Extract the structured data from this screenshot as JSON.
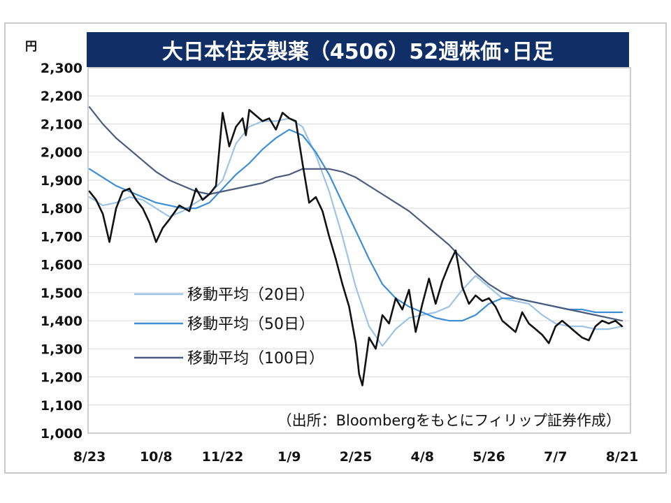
{
  "chart_data": {
    "type": "line",
    "title": "大日本住友製薬（4506）52週株価･日足",
    "unit": "円",
    "ylim": [
      1000,
      2300
    ],
    "y_ticks": [
      1000,
      1100,
      1200,
      1300,
      1400,
      1500,
      1600,
      1700,
      1800,
      1900,
      2000,
      2100,
      2200,
      2300
    ],
    "y_tick_labels": [
      "1,000",
      "1,100",
      "1,200",
      "1,300",
      "1,400",
      "1,500",
      "1,600",
      "1,700",
      "1,800",
      "1,900",
      "2,000",
      "2,100",
      "2,200",
      "2,300"
    ],
    "x_ticks": [
      "8/23",
      "10/8",
      "11/22",
      "1/9",
      "2/25",
      "4/8",
      "5/26",
      "7/7",
      "8/21"
    ],
    "grid": true,
    "legend_position": "center-left",
    "source": "（出所：Bloombergをもとにフィリップ証券作成）",
    "series": [
      {
        "name": "",
        "color": "#111111",
        "style": "daily-price",
        "x": [
          0,
          0.1,
          0.2,
          0.3,
          0.4,
          0.5,
          0.6,
          0.7,
          0.8,
          0.9,
          1.0,
          1.1,
          1.2,
          1.35,
          1.5,
          1.6,
          1.7,
          1.8,
          1.9,
          2.0,
          2.1,
          2.2,
          2.3,
          2.35,
          2.4,
          2.5,
          2.6,
          2.7,
          2.8,
          2.9,
          3.0,
          3.1,
          3.2,
          3.3,
          3.4,
          3.5,
          3.6,
          3.7,
          3.8,
          3.9,
          4.0,
          4.05,
          4.1,
          4.2,
          4.3,
          4.4,
          4.5,
          4.6,
          4.7,
          4.8,
          4.9,
          5.0,
          5.1,
          5.2,
          5.3,
          5.4,
          5.5,
          5.6,
          5.7,
          5.8,
          5.9,
          6.0,
          6.1,
          6.2,
          6.3,
          6.4,
          6.5,
          6.6,
          6.7,
          6.8,
          6.9,
          7.0,
          7.1,
          7.2,
          7.3,
          7.4,
          7.5,
          7.6,
          7.7,
          7.8,
          7.9,
          8.0
        ],
        "values": [
          1860,
          1830,
          1780,
          1680,
          1800,
          1860,
          1870,
          1830,
          1800,
          1750,
          1680,
          1730,
          1760,
          1810,
          1790,
          1870,
          1830,
          1850,
          1880,
          2140,
          2020,
          2090,
          2120,
          2060,
          2150,
          2130,
          2110,
          2120,
          2080,
          2140,
          2120,
          2110,
          1960,
          1820,
          1840,
          1790,
          1700,
          1620,
          1530,
          1450,
          1320,
          1210,
          1170,
          1340,
          1300,
          1420,
          1390,
          1480,
          1440,
          1510,
          1360,
          1460,
          1550,
          1460,
          1540,
          1600,
          1650,
          1520,
          1460,
          1490,
          1470,
          1480,
          1450,
          1400,
          1380,
          1360,
          1430,
          1390,
          1370,
          1350,
          1320,
          1380,
          1400,
          1380,
          1360,
          1340,
          1330,
          1380,
          1400,
          1390,
          1400,
          1380
        ]
      },
      {
        "name": "移動平均（20日）",
        "color": "#9dc3e6",
        "x": [
          0,
          0.2,
          0.4,
          0.6,
          0.8,
          1.0,
          1.2,
          1.4,
          1.6,
          1.8,
          2.0,
          2.2,
          2.4,
          2.6,
          2.8,
          3.0,
          3.2,
          3.4,
          3.6,
          3.8,
          4.0,
          4.2,
          4.4,
          4.6,
          4.8,
          5.0,
          5.2,
          5.4,
          5.6,
          5.8,
          6.0,
          6.2,
          6.4,
          6.6,
          6.8,
          7.0,
          7.2,
          7.4,
          7.6,
          7.8,
          8.0
        ],
        "values": [
          1840,
          1810,
          1820,
          1840,
          1830,
          1800,
          1770,
          1790,
          1820,
          1850,
          1900,
          2030,
          2090,
          2110,
          2110,
          2120,
          2090,
          1990,
          1860,
          1700,
          1520,
          1380,
          1310,
          1370,
          1410,
          1420,
          1430,
          1450,
          1510,
          1560,
          1520,
          1480,
          1470,
          1460,
          1420,
          1390,
          1380,
          1380,
          1370,
          1370,
          1380
        ]
      },
      {
        "name": "移動平均（50日）",
        "color": "#3c8fd4",
        "x": [
          0,
          0.2,
          0.4,
          0.6,
          0.8,
          1.0,
          1.2,
          1.4,
          1.6,
          1.8,
          2.0,
          2.2,
          2.4,
          2.6,
          2.8,
          3.0,
          3.2,
          3.4,
          3.6,
          3.8,
          4.0,
          4.2,
          4.4,
          4.6,
          4.8,
          5.0,
          5.2,
          5.4,
          5.6,
          5.8,
          6.0,
          6.2,
          6.4,
          6.6,
          6.8,
          7.0,
          7.2,
          7.4,
          7.6,
          7.8,
          8.0
        ],
        "values": [
          1940,
          1910,
          1880,
          1860,
          1840,
          1820,
          1810,
          1800,
          1800,
          1820,
          1870,
          1920,
          1960,
          2010,
          2050,
          2080,
          2060,
          2000,
          1920,
          1820,
          1720,
          1620,
          1530,
          1480,
          1450,
          1430,
          1410,
          1400,
          1400,
          1420,
          1460,
          1480,
          1480,
          1470,
          1460,
          1450,
          1440,
          1440,
          1430,
          1430,
          1430
        ]
      },
      {
        "name": "移動平均（100日）",
        "color": "#4a5b7d",
        "x": [
          0,
          0.2,
          0.4,
          0.6,
          0.8,
          1.0,
          1.2,
          1.4,
          1.6,
          1.8,
          2.0,
          2.2,
          2.4,
          2.6,
          2.8,
          3.0,
          3.2,
          3.4,
          3.6,
          3.8,
          4.0,
          4.2,
          4.4,
          4.6,
          4.8,
          5.0,
          5.2,
          5.4,
          5.6,
          5.8,
          6.0,
          6.2,
          6.4,
          6.6,
          6.8,
          7.0,
          7.2,
          7.4,
          7.6,
          7.8,
          8.0
        ],
        "values": [
          2160,
          2100,
          2050,
          2010,
          1970,
          1930,
          1900,
          1880,
          1860,
          1850,
          1860,
          1870,
          1880,
          1890,
          1910,
          1920,
          1940,
          1940,
          1940,
          1930,
          1910,
          1880,
          1850,
          1820,
          1790,
          1750,
          1710,
          1670,
          1620,
          1570,
          1530,
          1500,
          1480,
          1470,
          1460,
          1450,
          1440,
          1430,
          1420,
          1410,
          1400
        ]
      }
    ]
  }
}
